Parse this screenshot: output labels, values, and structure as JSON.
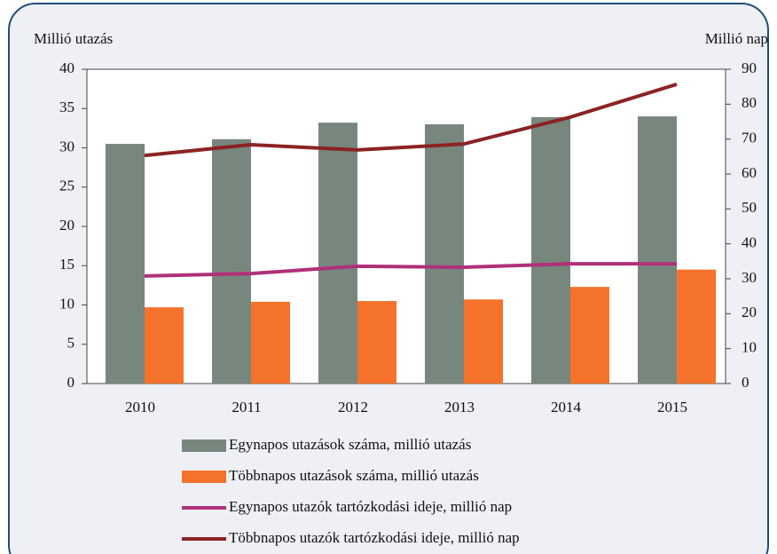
{
  "chart_data": {
    "type": "bar",
    "ylabel": "Millió utazás",
    "y2label": "Millió nap",
    "categories": [
      "2010",
      "2011",
      "2012",
      "2013",
      "2014",
      "2015"
    ],
    "series": [
      {
        "name": "Egynapos utazások száma, millió utazás",
        "type": "bar",
        "color": "#77877d",
        "values": [
          30.5,
          31.1,
          33.2,
          33.0,
          33.9,
          34.0
        ]
      },
      {
        "name": "Többnapos utazások száma, millió utazás",
        "type": "bar",
        "color": "#f47229",
        "values": [
          9.7,
          10.4,
          10.5,
          10.7,
          12.3,
          14.5
        ]
      },
      {
        "name": "Egynapos utazók tartózkodási ideje, millió nap",
        "type": "line",
        "axis": "y2",
        "color": "#b0307a",
        "values": [
          30.8,
          31.5,
          33.6,
          33.3,
          34.3,
          34.3
        ]
      },
      {
        "name": "Többnapos utazók tartózkodási ideje, millió nap",
        "type": "line",
        "axis": "y2",
        "color": "#8b2323",
        "values": [
          65.3,
          68.4,
          66.9,
          68.6,
          76.3,
          85.7
        ]
      }
    ],
    "ylim": [
      0,
      40
    ],
    "yticks": [
      0,
      5,
      10,
      15,
      20,
      25,
      30,
      35,
      40
    ],
    "y2lim": [
      0,
      90
    ],
    "y2ticks": [
      0,
      10,
      20,
      30,
      40,
      50,
      60,
      70,
      80,
      90
    ]
  }
}
